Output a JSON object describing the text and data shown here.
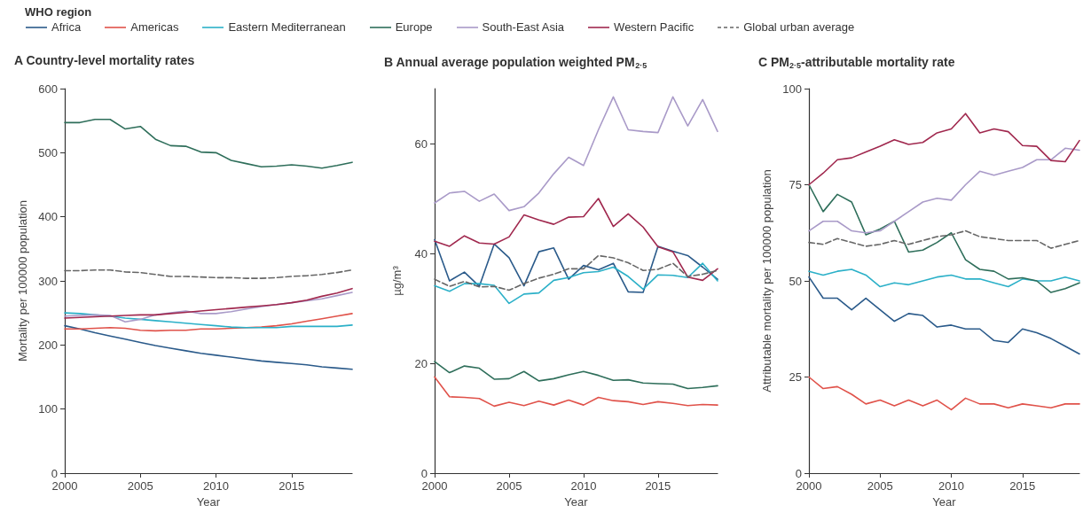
{
  "chart_data": [
    {
      "type": "line",
      "title": "A Country-level mortality rates",
      "ylabel": "Mortality per 100000 population",
      "xlabel": "Year",
      "legend": "top",
      "legend_title": "WHO region",
      "x": [
        2000,
        2001,
        2002,
        2003,
        2004,
        2005,
        2006,
        2007,
        2008,
        2009,
        2010,
        2011,
        2012,
        2013,
        2014,
        2015,
        2016,
        2017,
        2018,
        2019
      ],
      "xlim": [
        2000,
        2019
      ],
      "xticks": [
        2000,
        2005,
        2010,
        2015
      ],
      "ylim": [
        0,
        600
      ],
      "yticks": [
        0,
        100,
        200,
        300,
        400,
        500,
        600
      ],
      "series": [
        {
          "name": "Africa",
          "color": "#2a5a8a",
          "values": [
            230,
            225,
            219,
            214,
            209,
            204,
            199,
            195,
            191,
            187,
            184,
            181,
            178,
            175,
            173,
            171,
            169,
            166,
            164,
            162
          ]
        },
        {
          "name": "Americas",
          "color": "#e0524a",
          "values": [
            225,
            225,
            226,
            227,
            226,
            223,
            222,
            223,
            223,
            225,
            225,
            226,
            227,
            228,
            230,
            233,
            237,
            241,
            245,
            249
          ]
        },
        {
          "name": "Eastern Mediterranean",
          "color": "#2bb0c8",
          "values": [
            250,
            249,
            247,
            245,
            242,
            240,
            238,
            236,
            234,
            232,
            230,
            228,
            227,
            227,
            227,
            229,
            229,
            229,
            229,
            231
          ]
        },
        {
          "name": "Europe",
          "color": "#2e6e5a",
          "values": [
            547,
            547,
            552,
            552,
            537,
            541,
            521,
            511,
            510,
            501,
            500,
            488,
            483,
            478,
            479,
            481,
            479,
            476,
            480,
            485
          ]
        },
        {
          "name": "South-East Asia",
          "color": "#a99ac8",
          "values": [
            245,
            246,
            247,
            246,
            236,
            240,
            247,
            250,
            253,
            249,
            249,
            252,
            256,
            260,
            263,
            266,
            269,
            272,
            277,
            282
          ]
        },
        {
          "name": "Western Pacific",
          "color": "#a0284e",
          "values": [
            242,
            243,
            244,
            245,
            246,
            247,
            247,
            249,
            251,
            253,
            255,
            257,
            259,
            261,
            263,
            266,
            270,
            276,
            281,
            288
          ]
        },
        {
          "name": "Global urban average",
          "color": "#666666",
          "line_style": "dashed",
          "values": [
            316,
            316,
            317,
            317,
            314,
            313,
            310,
            307,
            307,
            306,
            305,
            305,
            304,
            304,
            305,
            307,
            308,
            310,
            313,
            317
          ]
        }
      ]
    },
    {
      "type": "line",
      "title": "B Annual average population weighted PM$_{2·5}$",
      "ylabel": "µg/m³",
      "xlabel": "Year",
      "x": [
        2000,
        2001,
        2002,
        2003,
        2004,
        2005,
        2006,
        2007,
        2008,
        2009,
        2010,
        2011,
        2012,
        2013,
        2014,
        2015,
        2016,
        2017,
        2018,
        2019
      ],
      "xlim": [
        2000,
        2019
      ],
      "xticks": [
        2000,
        2005,
        2010,
        2015
      ],
      "ylim": [
        0,
        70
      ],
      "yticks": [
        0,
        20,
        40,
        60
      ],
      "series": [
        {
          "color": "#2a5a8a",
          "values": [
            42.5,
            35,
            36.6,
            34,
            41.7,
            39.2,
            34.1,
            40.3,
            41,
            35.3,
            37.8,
            37,
            38.2,
            33,
            32.9,
            41.3,
            40.4,
            39.6,
            37.5,
            35.3
          ]
        },
        {
          "color": "#e0524a",
          "values": [
            17.5,
            13.9,
            13.8,
            13.6,
            12.2,
            12.9,
            12.3,
            13.1,
            12.4,
            13.3,
            12.4,
            13.8,
            13.2,
            13,
            12.5,
            13,
            12.7,
            12.3,
            12.5,
            12.4
          ]
        },
        {
          "color": "#2bb0c8",
          "values": [
            34.1,
            33.1,
            34.5,
            34.5,
            34.2,
            30.9,
            32.6,
            32.8,
            35.1,
            35.6,
            36.5,
            36.7,
            37.5,
            35.8,
            33.5,
            36.1,
            36,
            35.6,
            38.2,
            35
          ]
        },
        {
          "color": "#2e6e5a",
          "values": [
            20.3,
            18.3,
            19.5,
            19.1,
            17.1,
            17.2,
            18.5,
            16.8,
            17.2,
            17.9,
            18.5,
            17.8,
            16.9,
            17,
            16.4,
            16.3,
            16.2,
            15.4,
            15.6,
            15.9
          ]
        },
        {
          "color": "#a99ac8",
          "values": [
            49.2,
            51,
            51.3,
            49.5,
            50.8,
            47.8,
            48.5,
            51,
            54.5,
            57.5,
            56,
            62.5,
            68.5,
            62.5,
            62.2,
            62,
            68.5,
            63.2,
            68,
            62.2
          ]
        },
        {
          "color": "#a0284e",
          "values": [
            42.2,
            41.3,
            43.2,
            41.9,
            41.7,
            43,
            47,
            46.1,
            45.3,
            46.6,
            46.7,
            50,
            44.9,
            47.2,
            44.8,
            41.2,
            40.3,
            35.7,
            35.1,
            37.2
          ]
        },
        {
          "color": "#666666",
          "line_style": "dashed",
          "values": [
            35.3,
            34,
            34.9,
            33.9,
            34,
            33.3,
            34.5,
            35.5,
            36.2,
            37.2,
            37.2,
            39.6,
            39.2,
            38.3,
            36.9,
            37.1,
            38.2,
            35.8,
            36.2,
            36.9
          ]
        }
      ]
    },
    {
      "type": "line",
      "title": "C PM$_{2·5}$-attributable mortality rate",
      "ylabel": "Attributable mortality per 100000 population",
      "xlabel": "Year",
      "x": [
        2000,
        2001,
        2002,
        2003,
        2004,
        2005,
        2006,
        2007,
        2008,
        2009,
        2010,
        2011,
        2012,
        2013,
        2014,
        2015,
        2016,
        2017,
        2018,
        2019
      ],
      "xlim": [
        2000,
        2019
      ],
      "xticks": [
        2000,
        2005,
        2010,
        2015
      ],
      "ylim": [
        0,
        100
      ],
      "yticks": [
        0,
        25,
        50,
        75,
        100
      ],
      "series": [
        {
          "color": "#2a5a8a",
          "values": [
            51,
            45.5,
            45.5,
            42.5,
            45.5,
            42.5,
            39.5,
            41.5,
            41,
            38,
            38.5,
            37.5,
            37.5,
            34.5,
            34,
            37.5,
            36.5,
            35,
            33,
            31
          ]
        },
        {
          "color": "#e0524a",
          "values": [
            25,
            22,
            22.5,
            20.5,
            18,
            19,
            17.5,
            19,
            17.5,
            19,
            16.5,
            19.5,
            18,
            18,
            17,
            18,
            17.5,
            17,
            18,
            18
          ]
        },
        {
          "color": "#2bb0c8",
          "values": [
            52.5,
            51.5,
            52.5,
            53,
            51.5,
            48.5,
            49.5,
            49,
            50,
            51,
            51.5,
            50.5,
            50.5,
            49.5,
            48.5,
            50.5,
            50,
            50,
            51,
            50
          ]
        },
        {
          "color": "#2e6e5a",
          "values": [
            75,
            68,
            72.5,
            70.5,
            62,
            63.5,
            65.5,
            57.5,
            58,
            60,
            62.5,
            55.5,
            53,
            52.5,
            50.5,
            50.8,
            50,
            47,
            48,
            49.5
          ]
        },
        {
          "color": "#a99ac8",
          "values": [
            63,
            65.5,
            65.5,
            63,
            62.5,
            63,
            65.5,
            68,
            70.5,
            71.5,
            71,
            75,
            78.5,
            77.5,
            78.5,
            79.5,
            81.5,
            81.5,
            84.5,
            84
          ]
        },
        {
          "color": "#a0284e",
          "values": [
            75,
            78,
            81.5,
            82,
            83.5,
            85,
            86.7,
            85.5,
            86,
            88.5,
            89.5,
            93.5,
            88.5,
            89.5,
            88.8,
            85.2,
            85,
            81.3,
            81,
            86.5
          ]
        },
        {
          "color": "#666666",
          "line_style": "dashed",
          "values": [
            60,
            59.5,
            61,
            60,
            59,
            59.5,
            60.5,
            59.5,
            60.5,
            61.5,
            62,
            63,
            61.5,
            61,
            60.5,
            60.5,
            60.5,
            58.5,
            59.5,
            60.5
          ]
        }
      ]
    }
  ]
}
